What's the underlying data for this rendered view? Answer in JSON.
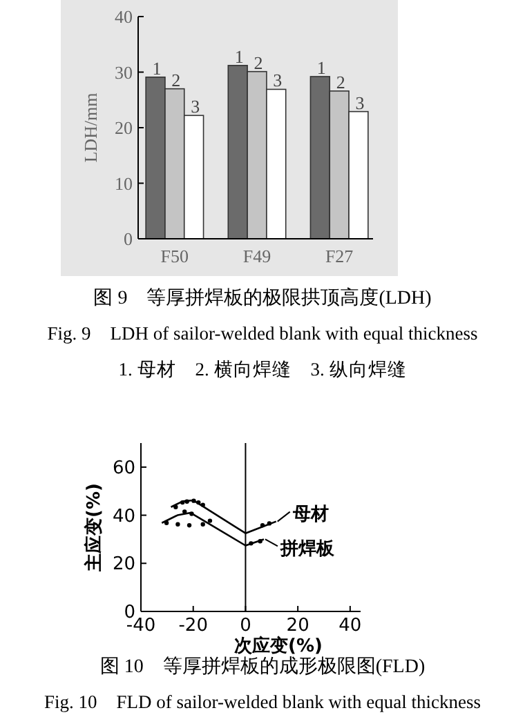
{
  "chart_data": [
    {
      "type": "bar",
      "title": "图 9　等厚拼焊板的极限拱顶高度(LDH)",
      "subtitle": "Fig. 9　LDH of sailor-welded blank with equal thickness",
      "ylabel": "LDH/mm",
      "annotations": [
        "1. 母材　2. 横向焊缝　3. 纵向焊缝"
      ],
      "categories": [
        "F50",
        "F49",
        "F27"
      ],
      "series": [
        {
          "name": "1",
          "color": "#6b6b6b",
          "values": [
            29.1,
            31.2,
            29.2
          ]
        },
        {
          "name": "2",
          "color": "#c4c4c4",
          "values": [
            27.0,
            30.1,
            26.6
          ]
        },
        {
          "name": "3",
          "color": "#ffffff",
          "values": [
            22.2,
            26.9,
            22.9
          ]
        }
      ],
      "ylim": [
        0,
        40
      ],
      "yticks": [
        0,
        10,
        20,
        30,
        40
      ],
      "grid": false
    },
    {
      "type": "line",
      "title": "图 10　等厚拼焊板的成形极限图(FLD)",
      "subtitle": "Fig. 10　FLD of sailor-welded blank with equal thickness",
      "xlabel": "次应变(%)",
      "ylabel": "主应变(%)",
      "series": [
        {
          "name": "母材",
          "color": "#000000",
          "x": [
            -28.5,
            -24,
            -20,
            0,
            11.7
          ],
          "values": [
            43.4,
            45.8,
            46.2,
            32.5,
            37.4
          ]
        },
        {
          "name": "拼焊板",
          "color": "#000000",
          "x": [
            -32,
            -26,
            -21,
            0,
            7
          ],
          "values": [
            36.8,
            40,
            41,
            27.4,
            30
          ]
        },
        {
          "type": "scatter",
          "color": "#000000",
          "x": [
            -26.7,
            -24.1,
            -22.4,
            -19.8,
            -18,
            -16.3,
            -23.3,
            -20.6,
            -30.2,
            -25.9,
            -21.5,
            -16.3,
            -13.6,
            6.5,
            9.1,
            2.1,
            5.6
          ],
          "values": [
            43.4,
            45.3,
            45.7,
            46,
            45.3,
            44.3,
            41.5,
            40.6,
            36.8,
            36.2,
            35.8,
            36.2,
            37.7,
            35.8,
            36.6,
            28.3,
            29.2
          ]
        }
      ],
      "xlim": [
        -40,
        44
      ],
      "xticks": [
        -40,
        -20,
        0,
        20,
        40
      ],
      "ylim": [
        0,
        70
      ],
      "yticks": [
        0,
        20,
        40,
        60
      ],
      "ref_lines": [
        {
          "axis": "x",
          "value": 0
        }
      ],
      "grid": false,
      "legend": "right"
    }
  ]
}
